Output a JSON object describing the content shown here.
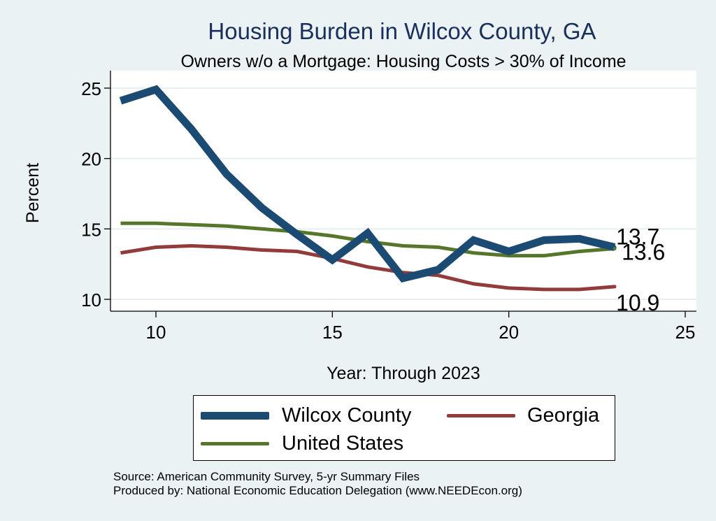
{
  "chart_data": {
    "type": "line",
    "title": "Housing Burden in Wilcox County, GA",
    "subtitle": "Owners w/o a Mortgage: Housing Costs > 30% of Income",
    "xlabel": "Year: Through 2023",
    "ylabel": "Percent",
    "xlim": [
      9,
      25
    ],
    "ylim": [
      9.6,
      25.7
    ],
    "xticks": [
      10,
      15,
      20,
      25
    ],
    "yticks": [
      10,
      15,
      20,
      25
    ],
    "grid": true,
    "legend_position": "bottom",
    "x": [
      9,
      10,
      11,
      12,
      13,
      14,
      15,
      16,
      17,
      18,
      19,
      20,
      21,
      22,
      23
    ],
    "series": [
      {
        "name": "Wilcox County",
        "color": "#1b4a73",
        "values": [
          24.1,
          24.9,
          22.1,
          18.9,
          16.5,
          14.6,
          12.8,
          14.7,
          11.5,
          12.1,
          14.2,
          13.4,
          14.2,
          14.3,
          13.7
        ],
        "end_label": "13.7"
      },
      {
        "name": "Georgia",
        "color": "#923b3b",
        "values": [
          13.3,
          13.7,
          13.8,
          13.7,
          13.5,
          13.4,
          12.9,
          12.3,
          11.9,
          11.7,
          11.1,
          10.8,
          10.7,
          10.7,
          10.9
        ],
        "end_label": "10.9"
      },
      {
        "name": "United States",
        "color": "#56772b",
        "values": [
          15.4,
          15.4,
          15.3,
          15.2,
          15.0,
          14.8,
          14.5,
          14.1,
          13.8,
          13.7,
          13.3,
          13.1,
          13.1,
          13.4,
          13.6
        ],
        "end_label": "13.6"
      }
    ]
  },
  "source": {
    "line1": "Source: American Community Survey, 5-yr Summary Files",
    "line2": "Produced by: National Economic Education Delegation (www.NEEDEcon.org)"
  }
}
